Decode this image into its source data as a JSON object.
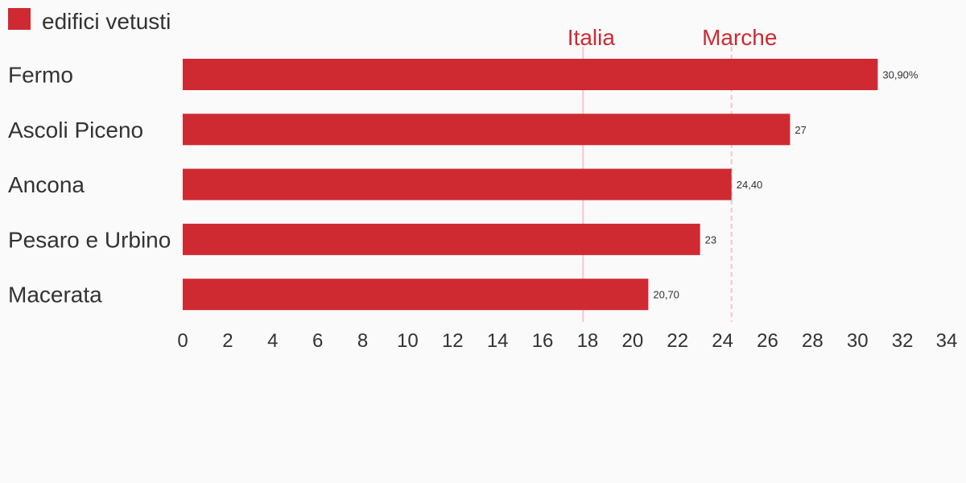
{
  "colors": {
    "bar": "#cf2a32",
    "reference": "#f6c5cf",
    "reference_label": "#cf2a32",
    "text": "#333333",
    "background": "#fafafa"
  },
  "chart_data": {
    "type": "bar",
    "orientation": "horizontal",
    "series": [
      {
        "name": "edifici vetusti",
        "values": [
          30.9,
          27,
          24.4,
          23,
          20.7
        ],
        "labels": [
          "30,90%",
          "27",
          "24,40",
          "23",
          "20,70"
        ]
      }
    ],
    "categories": [
      "Fermo",
      "Ascoli Piceno",
      "Ancona",
      "Pesaro e Urbino",
      "Macerata"
    ],
    "xlim": [
      0,
      34
    ],
    "ticks": [
      "0",
      "2",
      "4",
      "6",
      "8",
      "10",
      "12",
      "14",
      "16",
      "18",
      "20",
      "22",
      "24",
      "26",
      "28",
      "30",
      "32",
      "34"
    ],
    "reference_lines": [
      {
        "label": "Italia",
        "value": 17.8
      },
      {
        "label": "Marche",
        "value": 24.4
      }
    ],
    "legend_position": "top-left",
    "grid": false
  }
}
